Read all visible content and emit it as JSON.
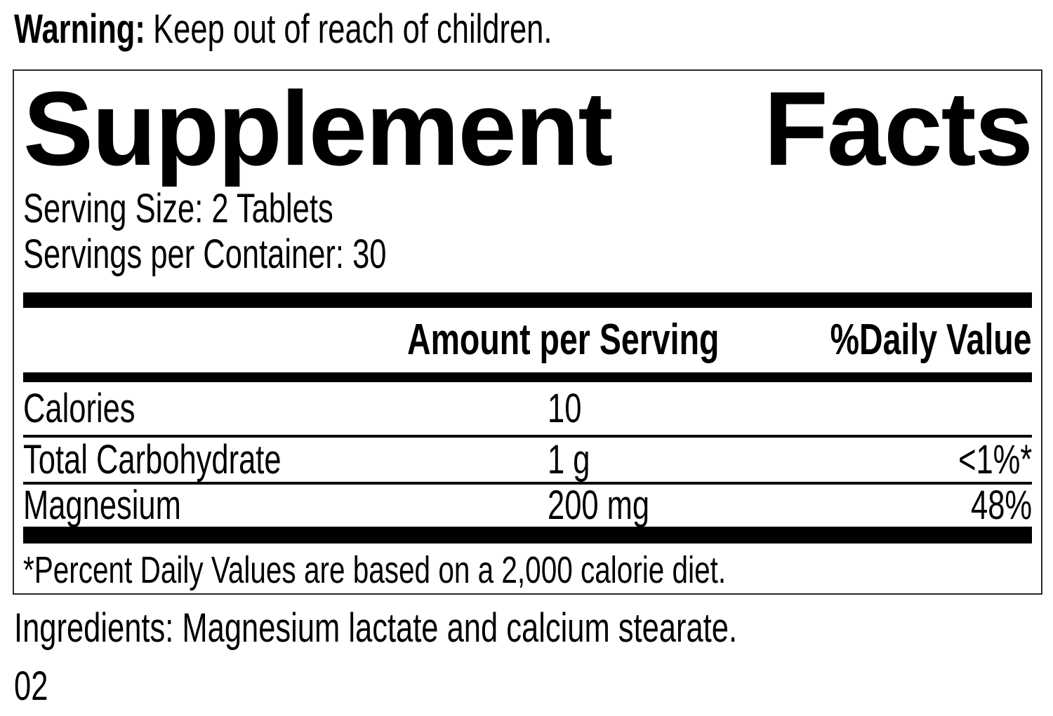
{
  "warning": {
    "label": "Warning:",
    "text": "Keep out of reach of children."
  },
  "panel": {
    "title_words": [
      "Supplement",
      "Facts"
    ],
    "serving_size": "Serving Size: 2 Tablets",
    "servings_per_container": "Servings per Container: 30",
    "header": {
      "amount": "Amount per Serving",
      "daily_value": "%Daily Value"
    },
    "rows": [
      {
        "name": "Calories",
        "amount": "10",
        "dv": ""
      },
      {
        "name": "Total Carbohydrate",
        "amount": "1 g",
        "dv": "<1%*"
      },
      {
        "name": "Magnesium",
        "amount": "200 mg",
        "dv": "48%"
      }
    ],
    "footnote": "*Percent Daily Values are based on a 2,000 calorie diet."
  },
  "ingredients": "Ingredients: Magnesium lactate and calcium stearate.",
  "code": "02",
  "colors": {
    "text": "#000000",
    "background": "#ffffff",
    "rule": "#000000"
  }
}
